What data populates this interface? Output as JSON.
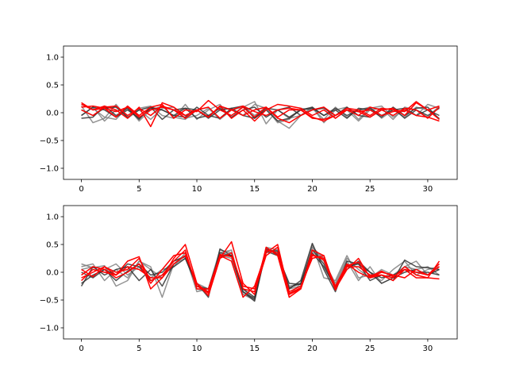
{
  "chart_data": [
    {
      "type": "line",
      "xticks": [
        0,
        5,
        10,
        15,
        20,
        25,
        30
      ],
      "yticks": [
        -1.0,
        -0.5,
        0.0,
        0.5,
        1.0
      ],
      "xtick_labels": [
        "0",
        "5",
        "10",
        "15",
        "20",
        "25",
        "30"
      ],
      "ytick_labels": [
        "−1.0",
        "−0.5",
        "0.0",
        "0.5",
        "1.0"
      ],
      "xlim": [
        -1.55,
        32.55
      ],
      "ylim": [
        -1.2,
        1.2
      ],
      "grid": false,
      "colors": {
        "gray": "#808080",
        "black": "#333333",
        "red": "#ff0000"
      },
      "series": [
        {
          "color": "gray",
          "values": [
            0.12,
            -0.18,
            -0.1,
            0.15,
            -0.1,
            0.05,
            -0.12,
            0.08,
            0.1,
            -0.1,
            -0.05,
            0.08,
            -0.12,
            0.05,
            0.1,
            0.2,
            -0.2,
            0.05,
            -0.1,
            -0.05,
            0.08,
            -0.12,
            0.1,
            -0.08,
            0.05,
            0.1,
            -0.1,
            0.05,
            -0.08,
            0.1,
            0.05,
            -0.1
          ]
        },
        {
          "color": "gray",
          "values": [
            -0.05,
            0.1,
            -0.15,
            0.05,
            -0.1,
            0.08,
            0.12,
            -0.05,
            -0.1,
            0.15,
            -0.12,
            0.05,
            0.15,
            -0.1,
            0.12,
            -0.05,
            0.1,
            -0.15,
            -0.28,
            -0.05,
            0.1,
            -0.18,
            0.05,
            0.1,
            -0.12,
            0.08,
            0.12,
            -0.08,
            0.05,
            -0.05,
            0.15,
            0.08
          ]
        },
        {
          "color": "gray",
          "values": [
            0.15,
            0.08,
            -0.08,
            -0.12,
            0.1,
            -0.15,
            0.05,
            0.12,
            -0.08,
            -0.12,
            0.05,
            -0.08,
            0.1,
            0.05,
            -0.05,
            0.15,
            0.08,
            -0.18,
            -0.12,
            0.08,
            0.05,
            0.1,
            -0.1,
            0.05,
            -0.15,
            0.05,
            0.08,
            -0.12,
            0.1,
            0.05,
            -0.08,
            0.12
          ]
        },
        {
          "color": "black",
          "values": [
            -0.1,
            -0.08,
            0.12,
            -0.05,
            0.08,
            -0.12,
            0.1,
            0.05,
            -0.05,
            -0.08,
            0.1,
            -0.05,
            -0.1,
            0.08,
            0.12,
            -0.1,
            0.05,
            -0.15,
            -0.1,
            0.05,
            0.08,
            -0.05,
            0.05,
            -0.1,
            0.08,
            0.05,
            -0.08,
            0.1,
            -0.05,
            0.08,
            0.1,
            -0.12
          ]
        },
        {
          "color": "black",
          "values": [
            0.05,
            -0.05,
            0.08,
            0.1,
            -0.08,
            0.05,
            0.1,
            -0.12,
            0.05,
            0.08,
            -0.1,
            -0.05,
            0.08,
            -0.08,
            0.05,
            0.1,
            -0.08,
            0.05,
            0.1,
            -0.05,
            0.05,
            0.08,
            -0.05,
            0.1,
            -0.05,
            -0.08,
            0.05,
            0.08,
            -0.1,
            0.05,
            -0.05,
            0.08
          ]
        },
        {
          "color": "black",
          "values": [
            -0.05,
            0.1,
            0.05,
            -0.08,
            0.05,
            -0.1,
            0.08,
            0.05,
            -0.05,
            0.08,
            0.05,
            -0.1,
            0.05,
            0.08,
            -0.05,
            -0.1,
            0.08,
            0.05,
            -0.08,
            0.05,
            0.1,
            -0.05,
            0.08,
            -0.05,
            0.05,
            0.08,
            -0.05,
            0.05,
            0.08,
            -0.05,
            0.05,
            -0.05
          ]
        },
        {
          "color": "red",
          "values": [
            0.18,
            0.05,
            0.12,
            0.05,
            -0.1,
            0.1,
            -0.25,
            0.18,
            0.1,
            -0.05,
            0.05,
            -0.08,
            0.12,
            -0.1,
            0.05,
            -0.15,
            0.05,
            0.15,
            0.12,
            0.08,
            -0.05,
            0.05,
            -0.1,
            0.05,
            -0.05,
            0.1,
            0.05,
            0.08,
            -0.05,
            0.18,
            0.05,
            0.12
          ]
        },
        {
          "color": "red",
          "values": [
            0.1,
            0.12,
            0.08,
            -0.08,
            0.12,
            -0.05,
            0.1,
            0.15,
            -0.1,
            0.05,
            0.02,
            0.22,
            0.05,
            -0.05,
            0.1,
            -0.08,
            0.1,
            -0.1,
            -0.18,
            -0.05,
            0.05,
            0.1,
            -0.05,
            0.08,
            0.05,
            -0.05,
            0.08,
            0.05,
            0.02,
            0.2,
            0.05,
            -0.12
          ]
        },
        {
          "color": "red",
          "values": [
            0.05,
            -0.05,
            0.1,
            0.12,
            -0.05,
            0.08,
            -0.05,
            0.12,
            0.05,
            -0.1,
            0.05,
            -0.08,
            0.12,
            0.05,
            -0.05,
            0.05,
            0.1,
            -0.08,
            0.05,
            0.05,
            -0.1,
            -0.12,
            -0.05,
            0.05,
            0.02,
            -0.08,
            0.05,
            -0.05,
            0.08,
            0.05,
            -0.1,
            0.1
          ]
        },
        {
          "color": "red",
          "values": [
            0.15,
            0.05,
            0.08,
            0.02,
            0.1,
            -0.08,
            0.05,
            0.1,
            0.05,
            -0.05,
            0.05,
            0.1,
            -0.1,
            0.05,
            0.12,
            0.02,
            -0.05,
            0.05,
            0.08,
            0.05,
            -0.08,
            -0.15,
            -0.05,
            0.05,
            0.02,
            0.05,
            -0.05,
            0.02,
            0.05,
            -0.05,
            -0.08,
            -0.15
          ]
        }
      ]
    },
    {
      "type": "line",
      "xticks": [
        0,
        5,
        10,
        15,
        20,
        25,
        30
      ],
      "yticks": [
        -1.0,
        -0.5,
        0.0,
        0.5,
        1.0
      ],
      "xtick_labels": [
        "0",
        "5",
        "10",
        "15",
        "20",
        "25",
        "30"
      ],
      "ytick_labels": [
        "−1.0",
        "−0.5",
        "0.0",
        "0.5",
        "1.0"
      ],
      "xlim": [
        -1.55,
        32.55
      ],
      "ylim": [
        -1.2,
        1.2
      ],
      "grid": false,
      "colors": {
        "gray": "#808080",
        "black": "#333333",
        "red": "#ff0000"
      },
      "series": [
        {
          "color": "gray",
          "values": [
            0.1,
            0.15,
            -0.15,
            0.05,
            -0.1,
            0.2,
            0.1,
            -0.45,
            0.15,
            0.25,
            -0.2,
            -0.3,
            0.4,
            0.35,
            -0.3,
            -0.5,
            0.45,
            0.4,
            -0.3,
            -0.25,
            0.5,
            -0.1,
            -0.15,
            0.3,
            -0.1,
            -0.05,
            -0.15,
            0.05,
            0.2,
            -0.05,
            0.05,
            0.1
          ]
        },
        {
          "color": "gray",
          "values": [
            0.15,
            0.08,
            0.12,
            -0.25,
            -0.15,
            0.2,
            0.05,
            -0.1,
            0.2,
            0.3,
            -0.35,
            -0.3,
            0.3,
            0.25,
            -0.4,
            -0.45,
            0.35,
            0.4,
            -0.4,
            -0.2,
            0.45,
            0.25,
            -0.25,
            0.2,
            -0.15,
            0.1,
            -0.2,
            -0.1,
            0.1,
            0.2,
            -0.05,
            0.05
          ]
        },
        {
          "color": "gray",
          "values": [
            0.05,
            0.1,
            0.05,
            0.15,
            -0.05,
            0.1,
            -0.1,
            0.05,
            0.1,
            0.35,
            -0.3,
            -0.35,
            0.35,
            0.4,
            -0.4,
            -0.5,
            0.4,
            0.35,
            -0.25,
            -0.2,
            0.45,
            0.2,
            -0.2,
            0.25,
            0.05,
            -0.1,
            0.05,
            -0.05,
            0.1,
            0.05,
            0.1,
            -0.05
          ]
        },
        {
          "color": "black",
          "values": [
            -0.25,
            0.1,
            -0.05,
            0.05,
            0.1,
            -0.15,
            0.05,
            -0.25,
            0.15,
            0.3,
            -0.2,
            -0.45,
            0.42,
            0.3,
            -0.35,
            -0.52,
            0.4,
            0.38,
            -0.3,
            -0.15,
            0.52,
            0.05,
            -0.35,
            0.2,
            0.15,
            -0.15,
            -0.05,
            -0.15,
            0.22,
            0.1,
            0.08,
            0.05
          ]
        },
        {
          "color": "black",
          "values": [
            0.0,
            -0.1,
            0.05,
            -0.05,
            0.15,
            0.1,
            -0.15,
            -0.05,
            0.1,
            0.25,
            -0.25,
            -0.3,
            0.35,
            0.3,
            -0.3,
            -0.45,
            0.38,
            0.3,
            -0.2,
            -0.22,
            0.4,
            0.15,
            -0.3,
            0.1,
            0.15,
            0.0,
            -0.2,
            -0.1,
            0.0,
            0.05,
            -0.05,
            0.05
          ]
        },
        {
          "color": "black",
          "values": [
            -0.2,
            -0.05,
            0.05,
            -0.15,
            0.02,
            0.15,
            -0.05,
            0.0,
            0.2,
            0.28,
            -0.25,
            -0.35,
            0.3,
            0.3,
            -0.35,
            -0.48,
            0.42,
            0.32,
            -0.28,
            -0.2,
            0.35,
            0.1,
            -0.28,
            0.05,
            0.2,
            0.0,
            -0.1,
            -0.05,
            0.05,
            0.0,
            0.0,
            -0.05
          ]
        },
        {
          "color": "red",
          "values": [
            -0.15,
            0.05,
            0.0,
            -0.05,
            0.2,
            0.28,
            -0.3,
            -0.1,
            0.25,
            0.5,
            -0.2,
            -0.42,
            0.25,
            0.55,
            -0.2,
            -0.4,
            0.45,
            0.3,
            -0.45,
            -0.3,
            0.4,
            0.3,
            -0.3,
            0.05,
            0.25,
            -0.1,
            -0.05,
            -0.15,
            0.05,
            -0.1,
            -0.1,
            0.2
          ]
        },
        {
          "color": "red",
          "values": [
            0.05,
            -0.08,
            0.1,
            0.0,
            0.05,
            0.25,
            -0.15,
            -0.05,
            0.2,
            0.4,
            -0.3,
            -0.3,
            0.3,
            0.2,
            -0.45,
            -0.25,
            0.35,
            0.5,
            -0.4,
            -0.3,
            0.3,
            0.25,
            -0.25,
            0.15,
            0.0,
            -0.1,
            0.0,
            -0.05,
            -0.1,
            0.05,
            -0.05,
            0.1
          ]
        },
        {
          "color": "red",
          "values": [
            -0.05,
            0.1,
            0.05,
            -0.1,
            0.0,
            0.15,
            -0.2,
            0.05,
            0.3,
            0.35,
            -0.25,
            -0.35,
            0.25,
            0.35,
            -0.3,
            -0.35,
            0.3,
            0.45,
            -0.35,
            -0.25,
            0.25,
            0.3,
            -0.3,
            0.1,
            0.1,
            -0.05,
            -0.05,
            -0.1,
            0.1,
            -0.05,
            -0.1,
            -0.12
          ]
        },
        {
          "color": "red",
          "values": [
            -0.1,
            0.0,
            0.1,
            -0.05,
            0.1,
            0.05,
            -0.1,
            -0.1,
            0.15,
            0.3,
            -0.2,
            -0.38,
            0.32,
            0.28,
            -0.25,
            -0.3,
            0.4,
            0.35,
            -0.38,
            -0.28,
            0.32,
            0.22,
            -0.32,
            0.12,
            0.18,
            -0.08,
            0.02,
            -0.08,
            0.05,
            0.0,
            -0.05,
            0.15
          ]
        }
      ]
    }
  ]
}
